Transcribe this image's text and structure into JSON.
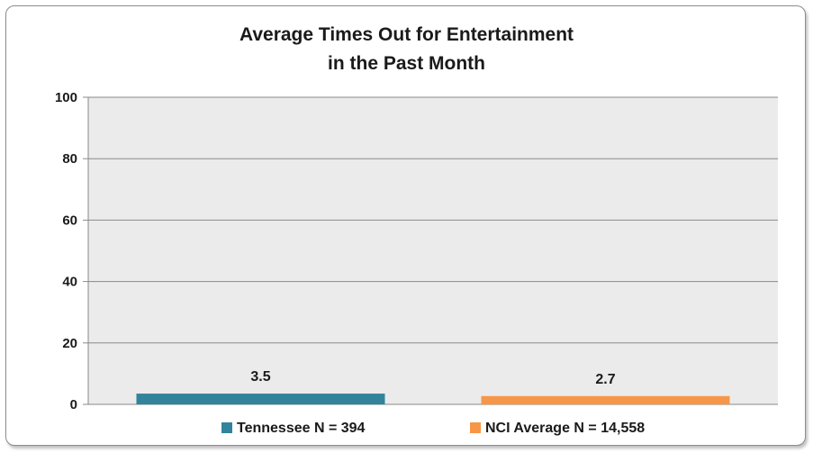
{
  "chart_data": {
    "type": "bar",
    "title_lines": [
      "Average Times Out for Entertainment",
      "in the Past Month"
    ],
    "categories": [
      ""
    ],
    "series": [
      {
        "name": "Tennessee N = 394",
        "values": [
          3.5
        ],
        "color": "#31849b",
        "label": "3.5"
      },
      {
        "name": "NCI Average N = 14,558",
        "values": [
          2.7
        ],
        "color": "#f79646",
        "label": "2.7"
      }
    ],
    "ylim": [
      0,
      100
    ],
    "yticks": [
      "0",
      "20",
      "40",
      "60",
      "80",
      "100"
    ],
    "xlabel": "",
    "ylabel": "",
    "grid": true,
    "legend_position": "bottom",
    "plot_background": "#ebebeb"
  }
}
